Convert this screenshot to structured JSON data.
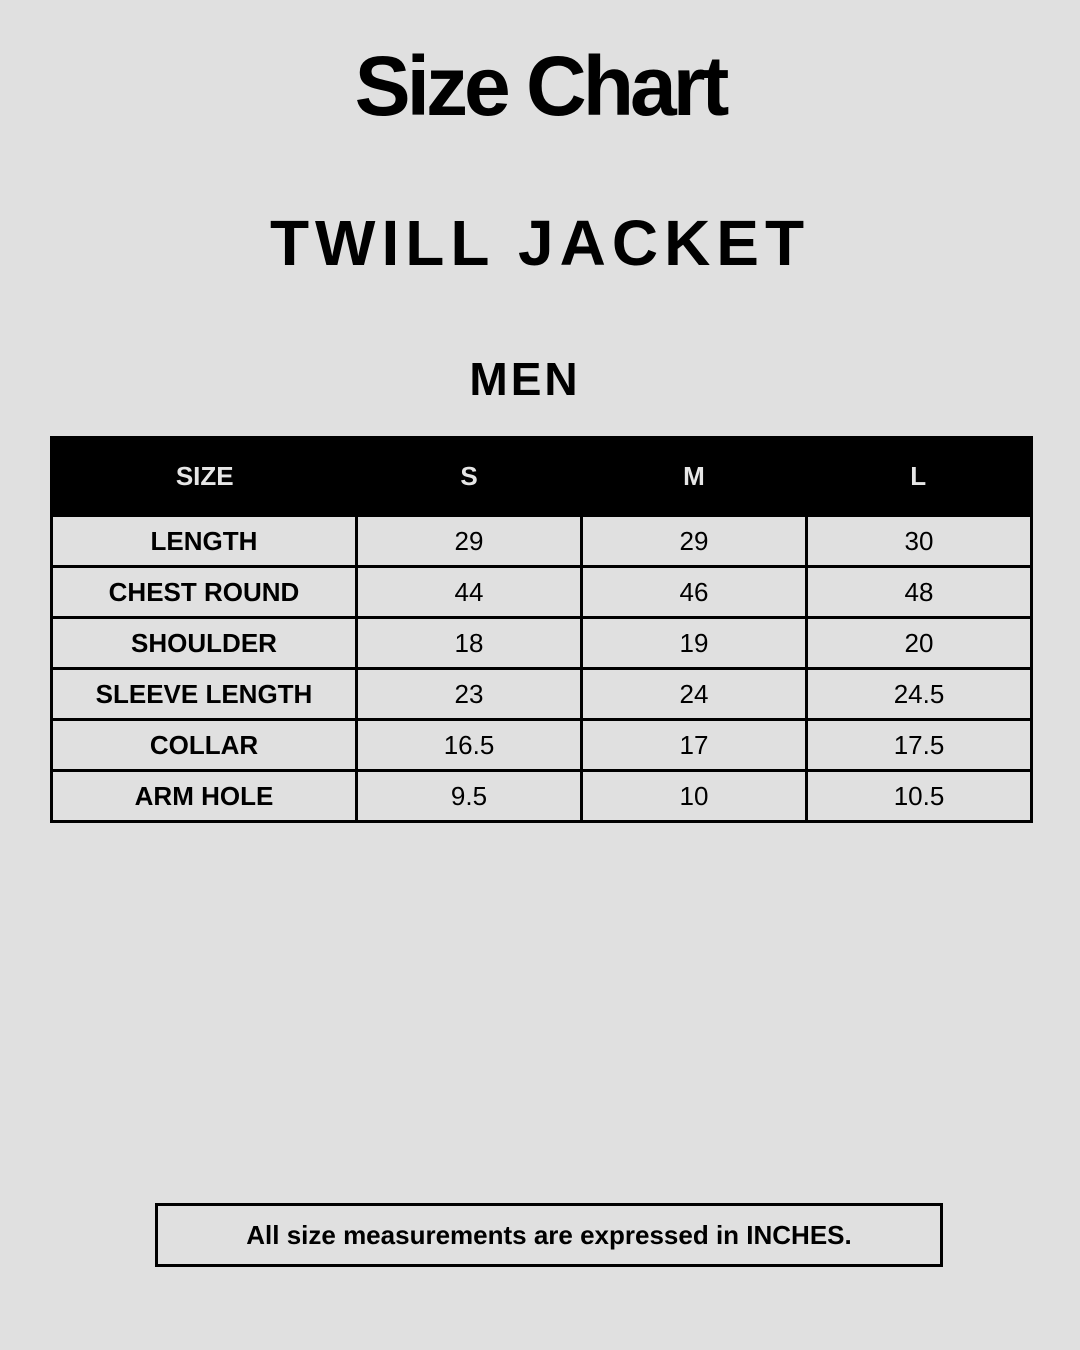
{
  "title": "Size Chart",
  "product": "TWILL JACKET",
  "section": "MEN",
  "table": {
    "headers": [
      "SIZE",
      "S",
      "M",
      "L"
    ],
    "rows": [
      {
        "label": "LENGTH",
        "values": [
          "29",
          "29",
          "30"
        ]
      },
      {
        "label": "CHEST ROUND",
        "values": [
          "44",
          "46",
          "48"
        ]
      },
      {
        "label": "SHOULDER",
        "values": [
          "18",
          "19",
          "20"
        ]
      },
      {
        "label": "SLEEVE LENGTH",
        "values": [
          "23",
          "24",
          "24.5"
        ]
      },
      {
        "label": "COLLAR",
        "values": [
          "16.5",
          "17",
          "17.5"
        ]
      },
      {
        "label": "ARM HOLE",
        "values": [
          "9.5",
          "10",
          "10.5"
        ]
      }
    ]
  },
  "note": "All size measurements are expressed in INCHES."
}
